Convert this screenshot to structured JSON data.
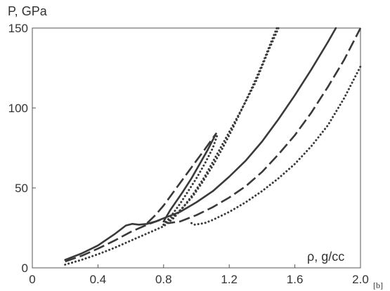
{
  "chart_data": {
    "type": "line",
    "title": "",
    "xlabel": "ρ, g/cc",
    "ylabel": "P, GPa",
    "panel_label": "[b]",
    "xlim": [
      0,
      2.0
    ],
    "ylim": [
      0,
      150
    ],
    "xticks": [
      "0",
      "0.4",
      "0.8",
      "1.2",
      "1.6",
      "2.0"
    ],
    "yticks": [
      "0",
      "50",
      "100",
      "150"
    ],
    "grid": false,
    "legend": "none",
    "series": [
      {
        "style": "solid",
        "color": "#3a3a3a",
        "points": [
          [
            0.2,
            5
          ],
          [
            0.3,
            9
          ],
          [
            0.4,
            14
          ],
          [
            0.5,
            21
          ],
          [
            0.57,
            26.5
          ],
          [
            0.61,
            27.5
          ],
          [
            0.65,
            27
          ],
          [
            0.7,
            27.5
          ],
          [
            0.75,
            29
          ],
          [
            0.8,
            31
          ],
          [
            0.9,
            35
          ],
          [
            1.0,
            41
          ],
          [
            1.1,
            48
          ],
          [
            1.2,
            57
          ],
          [
            1.3,
            67
          ],
          [
            1.4,
            79
          ],
          [
            1.5,
            93
          ],
          [
            1.6,
            108
          ],
          [
            1.7,
            124
          ],
          [
            1.8,
            141
          ],
          [
            1.85,
            150
          ]
        ]
      },
      {
        "style": "solid",
        "color": "#3a3a3a",
        "points": [
          [
            0.8,
            29
          ],
          [
            0.84,
            36
          ],
          [
            0.88,
            42
          ],
          [
            0.92,
            48
          ],
          [
            0.97,
            56
          ],
          [
            1.02,
            65
          ],
          [
            1.07,
            74
          ],
          [
            1.12,
            84
          ]
        ]
      },
      {
        "style": "dashed",
        "color": "#3a3a3a",
        "points": [
          [
            0.2,
            4
          ],
          [
            0.3,
            7.5
          ],
          [
            0.4,
            12
          ],
          [
            0.5,
            17
          ],
          [
            0.6,
            22.5
          ],
          [
            0.7,
            27
          ],
          [
            0.78,
            30
          ],
          [
            0.83,
            28
          ],
          [
            0.9,
            29
          ],
          [
            1.0,
            33
          ],
          [
            1.1,
            38
          ],
          [
            1.2,
            44
          ],
          [
            1.3,
            51
          ],
          [
            1.4,
            60
          ],
          [
            1.5,
            71
          ],
          [
            1.6,
            83
          ],
          [
            1.7,
            97
          ],
          [
            1.8,
            113
          ],
          [
            1.9,
            130
          ],
          [
            2.0,
            150
          ]
        ]
      },
      {
        "style": "dashed",
        "color": "#3a3a3a",
        "points": [
          [
            0.7,
            28
          ],
          [
            0.75,
            33
          ],
          [
            0.8,
            39
          ],
          [
            0.85,
            46
          ],
          [
            0.9,
            53
          ],
          [
            0.95,
            60
          ],
          [
            1.0,
            67
          ],
          [
            1.05,
            74
          ],
          [
            1.12,
            84
          ]
        ]
      },
      {
        "style": "dotted",
        "color": "#3a3a3a",
        "points": [
          [
            0.2,
            2
          ],
          [
            0.3,
            5
          ],
          [
            0.4,
            8.5
          ],
          [
            0.5,
            12.5
          ],
          [
            0.6,
            17
          ],
          [
            0.7,
            21.5
          ],
          [
            0.8,
            26
          ],
          [
            0.86,
            31
          ],
          [
            0.92,
            38
          ],
          [
            0.98,
            46
          ],
          [
            1.05,
            57
          ],
          [
            1.12,
            70
          ],
          [
            1.2,
            85
          ],
          [
            1.28,
            100
          ],
          [
            1.36,
            116
          ],
          [
            1.44,
            136
          ],
          [
            1.5,
            150
          ]
        ]
      },
      {
        "style": "dotted",
        "color": "#3a3a3a",
        "points": [
          [
            0.8,
            27
          ],
          [
            0.86,
            32
          ],
          [
            0.92,
            38
          ],
          [
            0.98,
            45
          ],
          [
            1.04,
            54
          ],
          [
            1.1,
            64
          ],
          [
            1.16,
            75
          ],
          [
            1.22,
            87
          ],
          [
            1.28,
            100
          ],
          [
            1.34,
            113
          ],
          [
            1.4,
            127
          ],
          [
            1.47,
            145
          ],
          [
            1.49,
            150
          ]
        ]
      },
      {
        "style": "dotted",
        "color": "#3a3a3a",
        "points": [
          [
            0.97,
            28
          ],
          [
            0.99,
            27
          ],
          [
            1.05,
            28
          ],
          [
            1.1,
            30
          ],
          [
            1.2,
            35
          ],
          [
            1.3,
            41
          ],
          [
            1.4,
            48
          ],
          [
            1.5,
            56
          ],
          [
            1.6,
            65
          ],
          [
            1.7,
            76
          ],
          [
            1.8,
            89
          ],
          [
            1.9,
            106
          ],
          [
            2.0,
            126
          ]
        ]
      },
      {
        "style": "dotted",
        "color": "#3a3a3a",
        "points": [
          [
            0.8,
            27
          ],
          [
            0.85,
            33
          ],
          [
            0.9,
            40
          ],
          [
            0.95,
            48
          ],
          [
            1.0,
            56
          ],
          [
            1.05,
            65
          ],
          [
            1.1,
            75
          ],
          [
            1.13,
            84
          ]
        ]
      }
    ]
  }
}
